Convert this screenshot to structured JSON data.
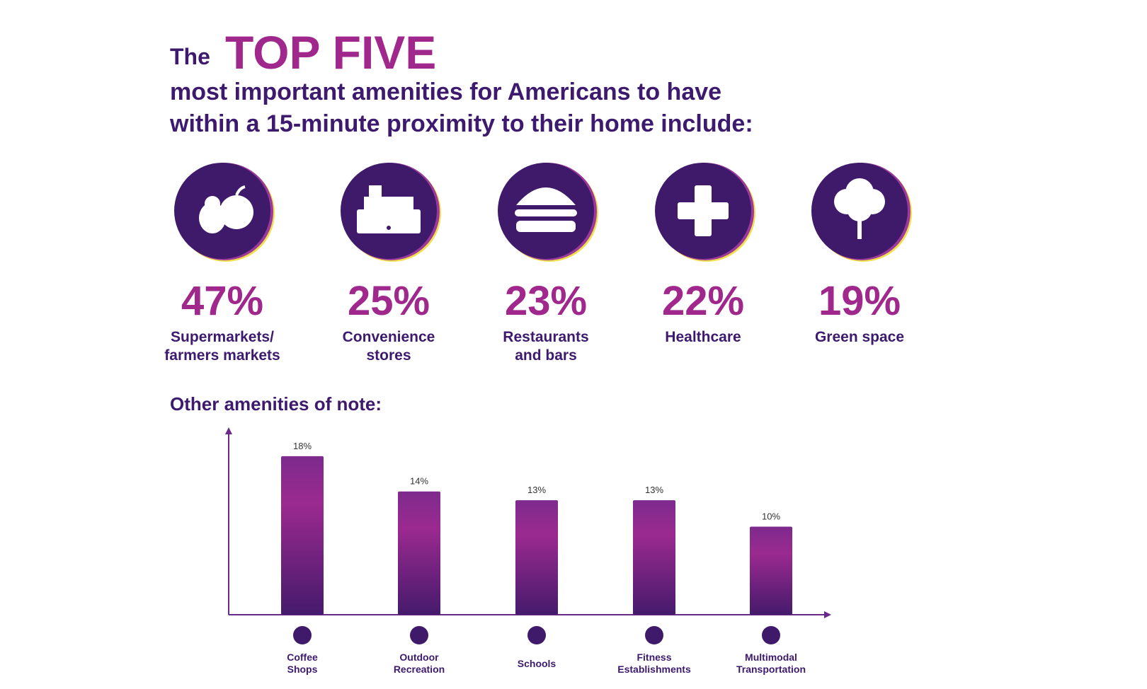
{
  "title_prefix": "The",
  "title_highlight": "TOP FIVE",
  "subtitle": "most important amenities for Americans to have\nwithin a 15-minute proximity to their home include:",
  "chart_data": [
    {
      "type": "stats",
      "categories": [
        "Supermarkets/\nfarmers markets",
        "Convenience\nstores",
        "Restaurants\nand bars",
        "Healthcare",
        "Green space"
      ],
      "values": [
        47,
        25,
        23,
        22,
        19
      ],
      "value_labels": [
        "47%",
        "25%",
        "23%",
        "22%",
        "19%"
      ],
      "color": "#a0288c"
    },
    {
      "type": "bar",
      "title": "Other amenities of note:",
      "categories": [
        "Coffee\nShops",
        "Outdoor\nRecreation",
        "Schools",
        "Fitness\nEstablishments",
        "Multimodal\nTransportation"
      ],
      "values": [
        18,
        14,
        13,
        13,
        10
      ],
      "value_labels": [
        "18%",
        "14%",
        "13%",
        "13%",
        "10%"
      ],
      "ylim": [
        0,
        20
      ],
      "color": "#8e2a8c"
    }
  ]
}
